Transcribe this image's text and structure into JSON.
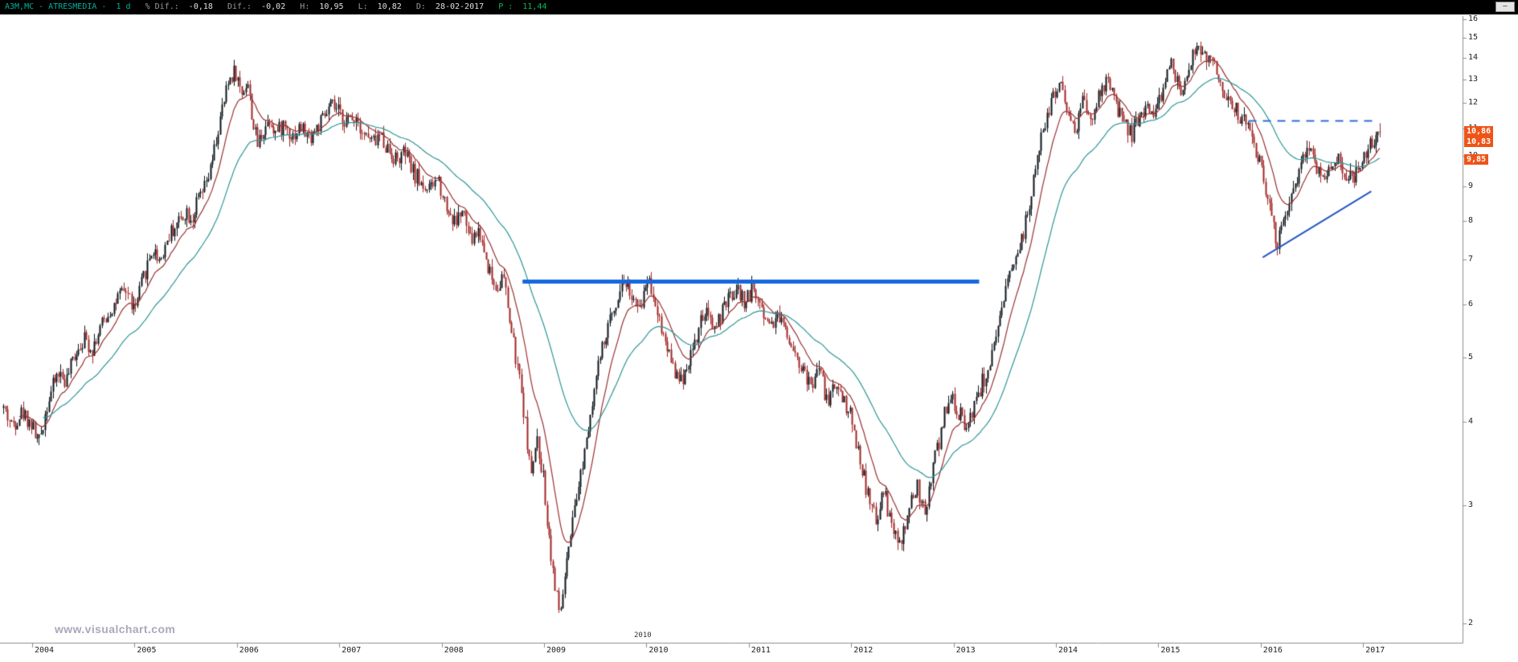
{
  "quote_bar": {
    "minimize_glyph": "—",
    "segments": [
      {
        "text": "A3M,MC - ATRESMEDIA -  1 d   ",
        "color": "#00b39b"
      },
      {
        "text": "% Dif.:  ",
        "color": "#9c9c9c"
      },
      {
        "text": "-0,18   ",
        "color": "#e0e0e0"
      },
      {
        "text": "Dif.:  ",
        "color": "#9c9c9c"
      },
      {
        "text": "-0,02   ",
        "color": "#e0e0e0"
      },
      {
        "text": "H:  ",
        "color": "#9c9c9c"
      },
      {
        "text": "10,95   ",
        "color": "#e0e0e0"
      },
      {
        "text": "L:  ",
        "color": "#9c9c9c"
      },
      {
        "text": "10,82   ",
        "color": "#e0e0e0"
      },
      {
        "text": "D:  ",
        "color": "#9c9c9c"
      },
      {
        "text": "28-02-2017   ",
        "color": "#e0e0e0"
      },
      {
        "text": "P :  ",
        "color": "#00c050"
      },
      {
        "text": "11,44",
        "color": "#00c050"
      }
    ]
  },
  "watermark": "www.visualchart.com",
  "floating_year_label": "2010",
  "badge_color": "#ee5418",
  "price_badges": [
    {
      "text": "10,86",
      "price": 10.86
    },
    {
      "text": "10,83",
      "price": 10.83
    },
    {
      "text": "9,85",
      "price": 9.85
    }
  ],
  "chart_data": {
    "type": "candlestick",
    "symbol": "A3M,MC",
    "name": "ATRESMEDIA",
    "period": "1 d",
    "last_date": "28-02-2017",
    "last_close": 10.86,
    "high": 10.95,
    "low": 10.82,
    "pct_change": -0.18,
    "change": -0.02,
    "objective_price": 11.44,
    "y_axis": {
      "scale": "log",
      "ticks": [
        16,
        15,
        14,
        13,
        12,
        11,
        10,
        9,
        8,
        7,
        6,
        5,
        4,
        3,
        2
      ],
      "range": [
        2,
        16.5
      ]
    },
    "x_axis": {
      "years": [
        2004,
        2005,
        2006,
        2007,
        2008,
        2009,
        2010,
        2011,
        2012,
        2013,
        2014,
        2015,
        2016,
        2017
      ],
      "range": [
        2003.72,
        2017.3
      ]
    },
    "t_start": 2003.72,
    "t_end": 2017.17,
    "bars_per_year": 52,
    "volatility": 0.03,
    "seed": 42,
    "colors": {
      "up": "#0c141a",
      "down": "#a12626"
    },
    "moving_averages": [
      {
        "name": "ma-fast-red",
        "period_weeks": 14,
        "color": "#9b3030"
      },
      {
        "name": "ma-slow-teal",
        "period_weeks": 44,
        "color": "#2e9595"
      }
    ],
    "overlays": [
      {
        "name": "horizontal-support-line",
        "type": "hline_segment",
        "t1": 2008.79,
        "t2": 2013.25,
        "price": 6.5,
        "color": "#1568dd",
        "width": 5,
        "dash": null
      },
      {
        "name": "dashed-objective-line",
        "type": "hline_segment",
        "t1": 2015.88,
        "t2": 2017.12,
        "price": 11.3,
        "color": "#2f6bd8",
        "width": 2,
        "dash": [
          10,
          8
        ]
      },
      {
        "name": "rising-trendline",
        "type": "trendline",
        "t1": 2016.02,
        "p1": 7.05,
        "t2": 2017.08,
        "p2": 8.85,
        "color": "#2456c4",
        "width": 2,
        "dash": null
      }
    ],
    "price_path": [
      [
        2003.72,
        4.2
      ],
      [
        2003.8,
        3.95
      ],
      [
        2003.9,
        4.15
      ],
      [
        2004.0,
        3.95
      ],
      [
        2004.06,
        3.7
      ],
      [
        2004.15,
        4.3
      ],
      [
        2004.25,
        4.75
      ],
      [
        2004.33,
        4.6
      ],
      [
        2004.42,
        5.1
      ],
      [
        2004.5,
        5.35
      ],
      [
        2004.58,
        5.15
      ],
      [
        2004.67,
        5.55
      ],
      [
        2004.75,
        5.85
      ],
      [
        2004.83,
        6.1
      ],
      [
        2004.92,
        6.3
      ],
      [
        2005.0,
        5.85
      ],
      [
        2005.08,
        6.55
      ],
      [
        2005.17,
        7.25
      ],
      [
        2005.25,
        7.0
      ],
      [
        2005.33,
        7.6
      ],
      [
        2005.42,
        7.95
      ],
      [
        2005.5,
        8.3
      ],
      [
        2005.56,
        8.05
      ],
      [
        2005.62,
        8.6
      ],
      [
        2005.68,
        8.9
      ],
      [
        2005.74,
        9.5
      ],
      [
        2005.8,
        10.6
      ],
      [
        2005.86,
        11.8
      ],
      [
        2005.92,
        13.0
      ],
      [
        2005.98,
        13.45
      ],
      [
        2006.04,
        12.4
      ],
      [
        2006.1,
        12.95
      ],
      [
        2006.16,
        11.1
      ],
      [
        2006.2,
        10.4
      ],
      [
        2006.26,
        11.0
      ],
      [
        2006.32,
        11.4
      ],
      [
        2006.38,
        10.8
      ],
      [
        2006.46,
        11.15
      ],
      [
        2006.54,
        10.7
      ],
      [
        2006.62,
        11.05
      ],
      [
        2006.7,
        10.65
      ],
      [
        2006.78,
        11.0
      ],
      [
        2006.86,
        11.45
      ],
      [
        2006.92,
        11.9
      ],
      [
        2007.0,
        11.55
      ],
      [
        2007.08,
        11.25
      ],
      [
        2007.16,
        11.5
      ],
      [
        2007.24,
        10.8
      ],
      [
        2007.32,
        10.45
      ],
      [
        2007.4,
        10.75
      ],
      [
        2007.48,
        10.2
      ],
      [
        2007.56,
        9.85
      ],
      [
        2007.64,
        10.1
      ],
      [
        2007.72,
        9.45
      ],
      [
        2007.8,
        9.1
      ],
      [
        2007.88,
        8.85
      ],
      [
        2007.96,
        9.3
      ],
      [
        2008.04,
        8.45
      ],
      [
        2008.12,
        7.95
      ],
      [
        2008.2,
        8.25
      ],
      [
        2008.28,
        7.45
      ],
      [
        2008.36,
        7.75
      ],
      [
        2008.44,
        6.95
      ],
      [
        2008.52,
        6.35
      ],
      [
        2008.6,
        6.6
      ],
      [
        2008.66,
        5.7
      ],
      [
        2008.72,
        5.0
      ],
      [
        2008.78,
        4.4
      ],
      [
        2008.84,
        3.7
      ],
      [
        2008.88,
        3.25
      ],
      [
        2008.92,
        3.8
      ],
      [
        2008.98,
        3.4
      ],
      [
        2009.04,
        2.75
      ],
      [
        2009.1,
        2.3
      ],
      [
        2009.15,
        2.05
      ],
      [
        2009.22,
        2.45
      ],
      [
        2009.3,
        2.95
      ],
      [
        2009.38,
        3.55
      ],
      [
        2009.46,
        4.25
      ],
      [
        2009.54,
        4.95
      ],
      [
        2009.62,
        5.5
      ],
      [
        2009.7,
        6.1
      ],
      [
        2009.78,
        6.55
      ],
      [
        2009.86,
        6.15
      ],
      [
        2009.92,
        5.8
      ],
      [
        2009.98,
        6.35
      ],
      [
        2010.02,
        6.6
      ],
      [
        2010.08,
        6.1
      ],
      [
        2010.16,
        5.4
      ],
      [
        2010.24,
        5.0
      ],
      [
        2010.32,
        4.55
      ],
      [
        2010.4,
        4.9
      ],
      [
        2010.48,
        5.3
      ],
      [
        2010.56,
        5.85
      ],
      [
        2010.64,
        5.55
      ],
      [
        2010.72,
        5.75
      ],
      [
        2010.8,
        6.1
      ],
      [
        2010.88,
        6.3
      ],
      [
        2010.96,
        6.05
      ],
      [
        2011.04,
        6.35
      ],
      [
        2011.12,
        5.95
      ],
      [
        2011.2,
        5.6
      ],
      [
        2011.28,
        5.8
      ],
      [
        2011.36,
        5.5
      ],
      [
        2011.44,
        5.15
      ],
      [
        2011.52,
        4.8
      ],
      [
        2011.6,
        4.5
      ],
      [
        2011.68,
        4.85
      ],
      [
        2011.76,
        4.3
      ],
      [
        2011.84,
        4.55
      ],
      [
        2011.92,
        4.35
      ],
      [
        2012.0,
        4.05
      ],
      [
        2012.08,
        3.55
      ],
      [
        2012.16,
        3.1
      ],
      [
        2012.24,
        2.85
      ],
      [
        2012.32,
        3.15
      ],
      [
        2012.4,
        2.75
      ],
      [
        2012.48,
        2.6
      ],
      [
        2012.56,
        2.95
      ],
      [
        2012.64,
        3.2
      ],
      [
        2012.72,
        2.9
      ],
      [
        2012.8,
        3.45
      ],
      [
        2012.88,
        3.9
      ],
      [
        2012.96,
        4.4
      ],
      [
        2013.04,
        4.15
      ],
      [
        2013.12,
        3.95
      ],
      [
        2013.2,
        4.25
      ],
      [
        2013.28,
        4.6
      ],
      [
        2013.36,
        4.9
      ],
      [
        2013.44,
        5.5
      ],
      [
        2013.52,
        6.4
      ],
      [
        2013.6,
        7.2
      ],
      [
        2013.68,
        7.6
      ],
      [
        2013.76,
        8.9
      ],
      [
        2013.84,
        10.3
      ],
      [
        2013.92,
        11.6
      ],
      [
        2014.0,
        12.6
      ],
      [
        2014.06,
        12.95
      ],
      [
        2014.12,
        11.4
      ],
      [
        2014.18,
        10.9
      ],
      [
        2014.26,
        12.0
      ],
      [
        2014.34,
        11.3
      ],
      [
        2014.42,
        12.3
      ],
      [
        2014.5,
        12.9
      ],
      [
        2014.58,
        12.0
      ],
      [
        2014.66,
        11.1
      ],
      [
        2014.74,
        10.8
      ],
      [
        2014.82,
        11.5
      ],
      [
        2014.9,
        11.9
      ],
      [
        2014.98,
        11.6
      ],
      [
        2015.04,
        12.5
      ],
      [
        2015.1,
        13.85
      ],
      [
        2015.16,
        13.2
      ],
      [
        2015.22,
        12.6
      ],
      [
        2015.28,
        13.4
      ],
      [
        2015.36,
        14.55
      ],
      [
        2015.44,
        13.85
      ],
      [
        2015.5,
        14.2
      ],
      [
        2015.58,
        13.1
      ],
      [
        2015.66,
        12.3
      ],
      [
        2015.74,
        11.8
      ],
      [
        2015.82,
        11.3
      ],
      [
        2015.9,
        10.85
      ],
      [
        2015.98,
        9.9
      ],
      [
        2016.04,
        9.1
      ],
      [
        2016.1,
        8.3
      ],
      [
        2016.16,
        7.2
      ],
      [
        2016.22,
        8.2
      ],
      [
        2016.28,
        8.7
      ],
      [
        2016.36,
        9.4
      ],
      [
        2016.44,
        10.3
      ],
      [
        2016.52,
        9.9
      ],
      [
        2016.58,
        9.2
      ],
      [
        2016.66,
        9.7
      ],
      [
        2016.74,
        10.0
      ],
      [
        2016.82,
        9.4
      ],
      [
        2016.9,
        9.3
      ],
      [
        2016.96,
        9.8
      ],
      [
        2017.02,
        10.1
      ],
      [
        2017.08,
        10.45
      ],
      [
        2017.13,
        10.7
      ],
      [
        2017.17,
        10.86
      ]
    ]
  }
}
